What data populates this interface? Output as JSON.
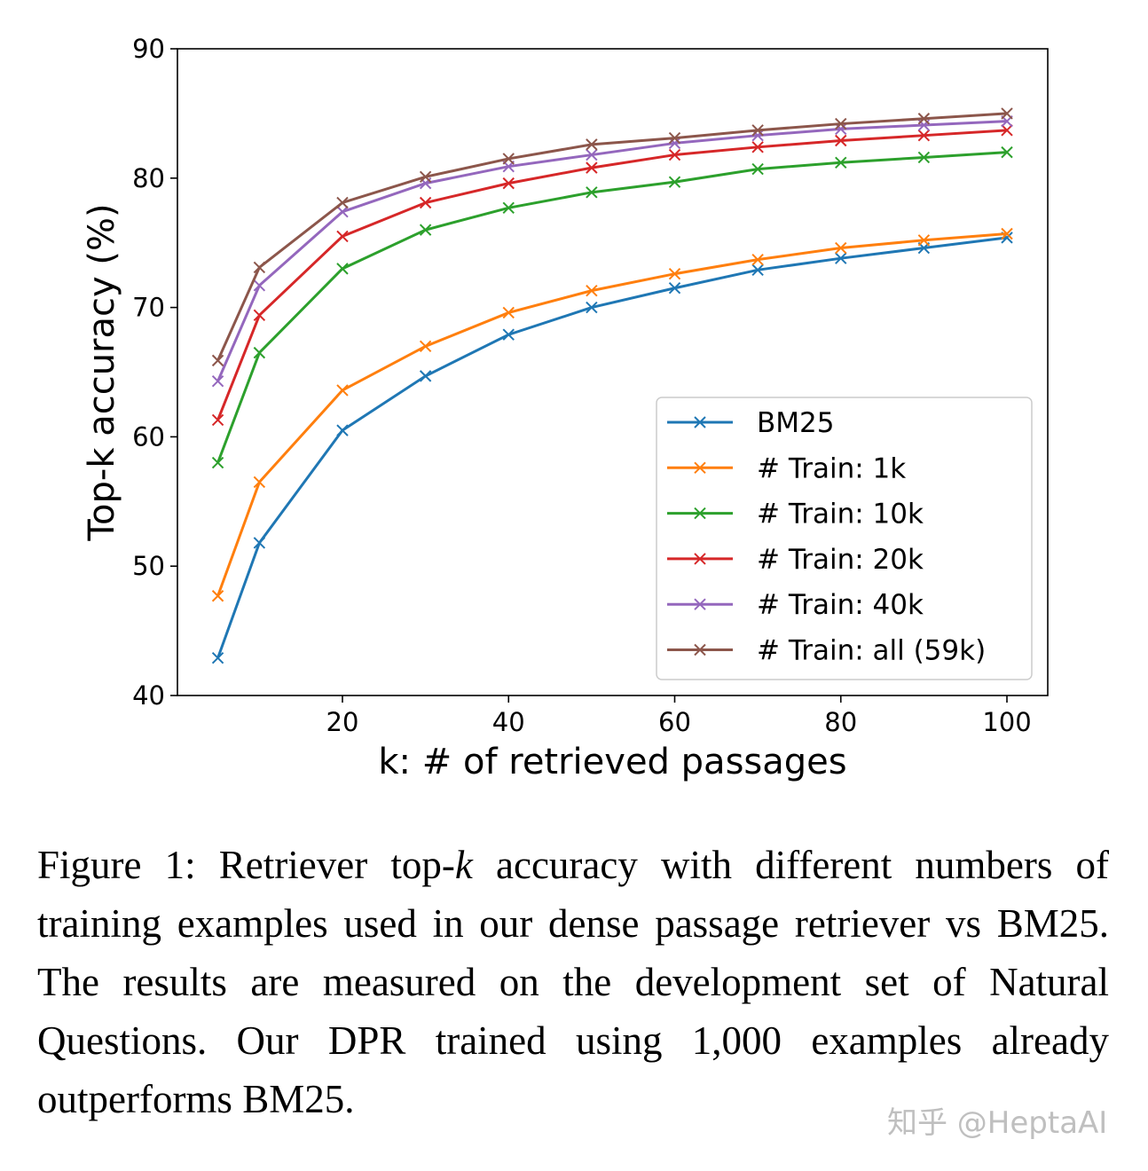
{
  "chart_data": {
    "type": "line",
    "title": "",
    "xlabel": "k: # of retrieved passages",
    "ylabel": "Top-k accuracy (%)",
    "xlim": [
      1,
      105
    ],
    "ylim": [
      40,
      90
    ],
    "xticks": [
      20,
      40,
      60,
      80,
      100
    ],
    "yticks": [
      40,
      50,
      60,
      70,
      80,
      90
    ],
    "grid": false,
    "legend_placement": "lower-right",
    "marker": "x",
    "x": [
      5,
      10,
      20,
      30,
      40,
      50,
      60,
      70,
      80,
      90,
      100
    ],
    "series": [
      {
        "name": "BM25",
        "color": "#1f77b4",
        "values": [
          42.9,
          51.8,
          60.5,
          64.7,
          67.9,
          70.0,
          71.5,
          72.9,
          73.8,
          74.6,
          75.4
        ]
      },
      {
        "name": "# Train: 1k",
        "color": "#ff7f0e",
        "values": [
          47.7,
          56.5,
          63.6,
          67.0,
          69.6,
          71.3,
          72.6,
          73.7,
          74.6,
          75.2,
          75.7
        ]
      },
      {
        "name": "# Train: 10k",
        "color": "#2ca02c",
        "values": [
          58.0,
          66.5,
          73.0,
          76.0,
          77.7,
          78.9,
          79.7,
          80.7,
          81.2,
          81.6,
          82.0
        ]
      },
      {
        "name": "# Train: 20k",
        "color": "#d62728",
        "values": [
          61.3,
          69.4,
          75.5,
          78.1,
          79.6,
          80.8,
          81.8,
          82.4,
          82.9,
          83.3,
          83.7
        ]
      },
      {
        "name": "# Train: 40k",
        "color": "#9467bd",
        "values": [
          64.3,
          71.7,
          77.4,
          79.6,
          80.9,
          81.8,
          82.7,
          83.3,
          83.8,
          84.1,
          84.4
        ]
      },
      {
        "name": "# Train: all (59k)",
        "color": "#8c564b",
        "values": [
          65.9,
          73.1,
          78.1,
          80.1,
          81.5,
          82.6,
          83.1,
          83.7,
          84.2,
          84.6,
          85.0
        ]
      }
    ]
  },
  "caption": {
    "prefix": "Figure 1: Retriever top-",
    "italic": "k",
    "suffix": " accuracy with different numbers of training examples used in our dense passage retriever vs BM25.  The results are measured on the development set of Natural Questions.  Our DPR trained using 1,000 examples already outperforms BM25."
  },
  "watermark": "知乎 @HeptaAI"
}
